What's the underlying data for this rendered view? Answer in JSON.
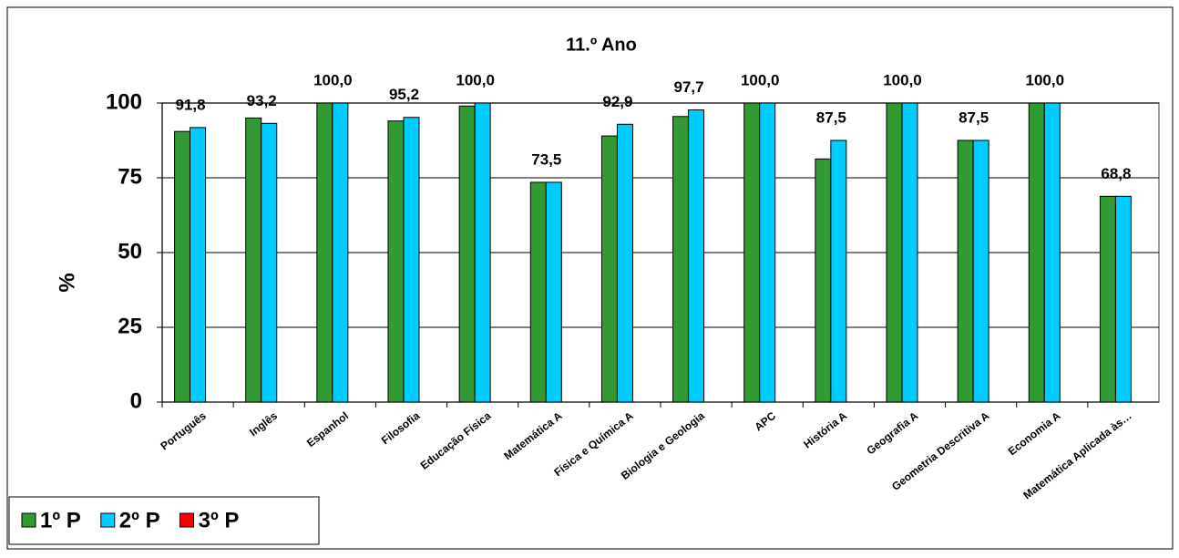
{
  "chart_data": {
    "type": "bar",
    "title": "11.º Ano",
    "y_label": "%",
    "categories": [
      "Português",
      "Inglês",
      "Espanhol",
      "Filosofia",
      "Educação Física",
      "Matemática A",
      "Física e Química A",
      "Biologia e Geologia",
      "APC",
      "História A",
      "Geografia A",
      "Geometria Descritiva A",
      "Economia A",
      "Matemática Aplicada às…"
    ],
    "series": [
      {
        "name": "1º P",
        "color": "#339933",
        "values": [
          90.5,
          95,
          100,
          94,
          99,
          73.5,
          89,
          95.5,
          100,
          81.3,
          100,
          87.5,
          100,
          68.8
        ]
      },
      {
        "name": "2º P",
        "color": "#00ccff",
        "values": [
          91.8,
          93.2,
          100,
          95.2,
          100,
          73.5,
          92.9,
          97.7,
          100,
          87.5,
          100,
          87.5,
          100,
          68.8
        ],
        "value_labels": [
          "91,8",
          "93,2",
          "100,0",
          "95,2",
          "100,0",
          "73,5",
          "92,9",
          "97,7",
          "100,0",
          "87,5",
          "100,0",
          "87,5",
          "100,0",
          "68,8"
        ]
      },
      {
        "name": "3º P",
        "color": "#ff0000",
        "values": [
          null,
          null,
          null,
          null,
          null,
          null,
          null,
          null,
          null,
          null,
          null,
          null,
          null,
          null
        ]
      }
    ],
    "ylim": [
      0,
      100
    ],
    "yticks": [
      0,
      25,
      50,
      75,
      100
    ],
    "grid": true,
    "legend": "bottom-left"
  }
}
